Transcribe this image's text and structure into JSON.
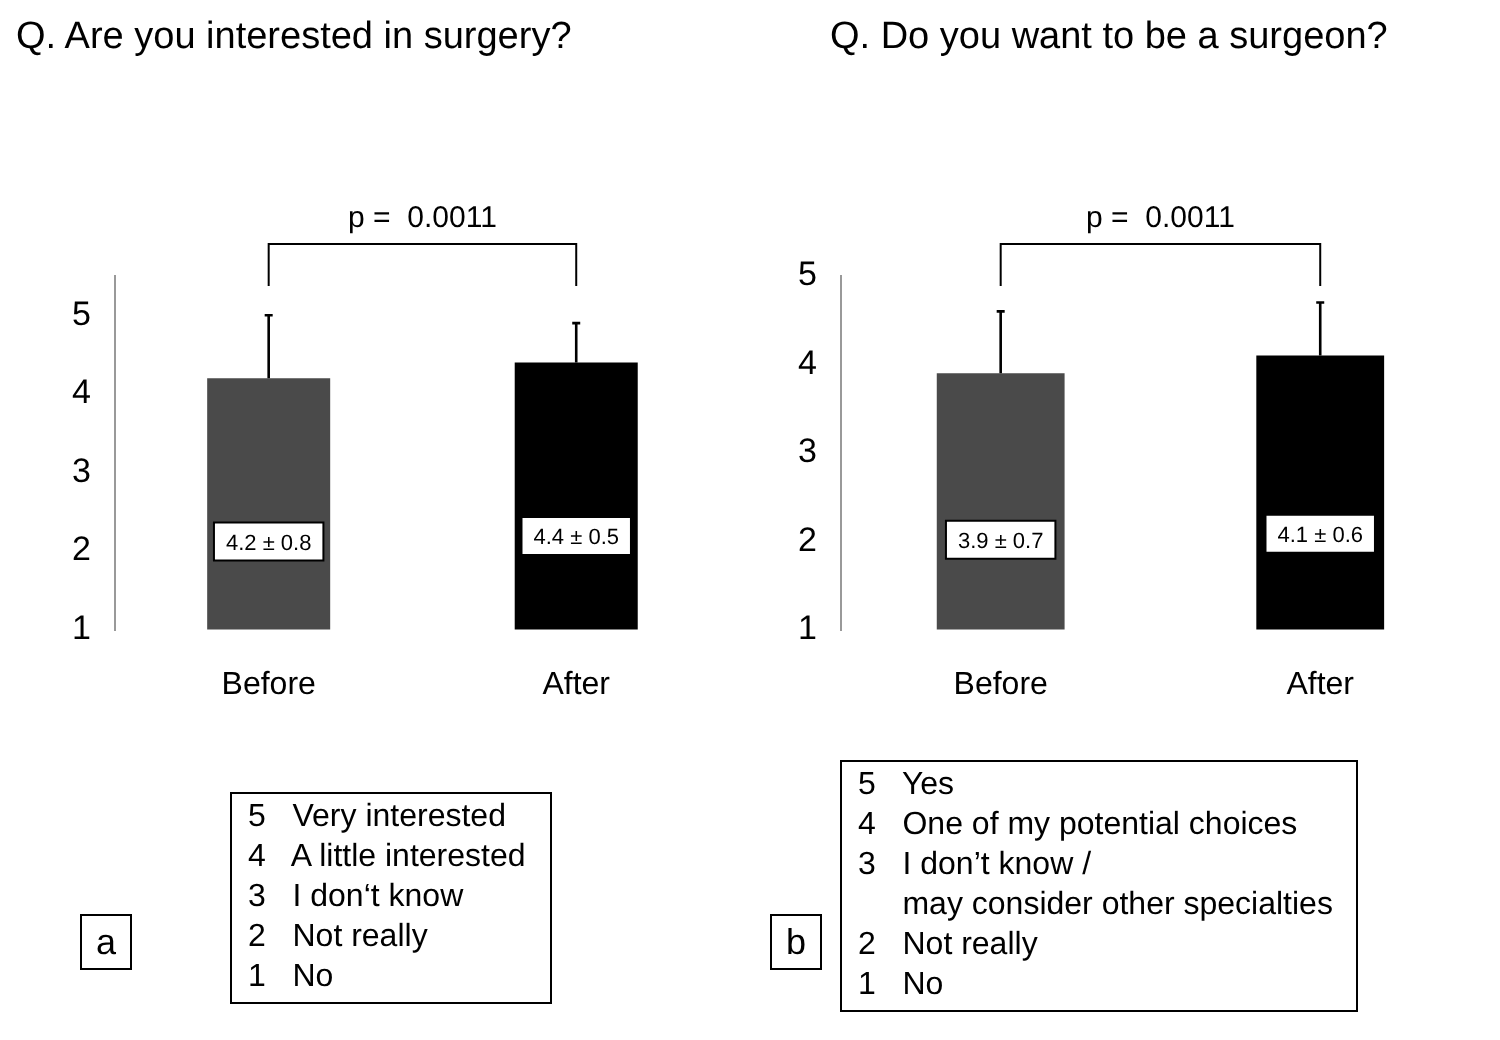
{
  "chart_data": [
    {
      "type": "bar",
      "title": "Q.  Are you interested in surgery?",
      "categories": [
        "Before",
        "After"
      ],
      "values": [
        4.2,
        4.4
      ],
      "colors": [
        "#4a4a4a",
        "#000000"
      ],
      "errors": [
        [
          4.2,
          5.0
        ],
        [
          4.4,
          4.9
        ]
      ],
      "value_labels": [
        "4.2 ± 0.8",
        "4.4 ± 0.5"
      ],
      "ylim": [
        1,
        5.5
      ],
      "yticks": [
        1,
        2,
        3,
        4,
        5
      ],
      "grid": false,
      "legend": false,
      "annotations": [
        "p =  0.0011",
        "a",
        "5   Very interested",
        "4   A little interested",
        "3   I don‘t know",
        "2   Not really",
        "1   No"
      ]
    },
    {
      "type": "bar",
      "title": "Q.  Do you want to be a surgeon?",
      "categories": [
        "Before",
        "After"
      ],
      "values": [
        3.9,
        4.1
      ],
      "colors": [
        "#4a4a4a",
        "#000000"
      ],
      "errors": [
        [
          3.9,
          4.6
        ],
        [
          4.1,
          4.7
        ]
      ],
      "value_labels": [
        "3.9 ± 0.7",
        "4.1 ± 0.6"
      ],
      "ylim": [
        1,
        5
      ],
      "yticks": [
        1,
        2,
        3,
        4,
        5
      ],
      "grid": false,
      "legend": false,
      "annotations": [
        "p =  0.0011",
        "b",
        "5   Yes",
        "4   One of my potential choices",
        "3   I don’t know /",
        "     may consider other specialties",
        "2   Not really",
        "1   No"
      ]
    }
  ]
}
